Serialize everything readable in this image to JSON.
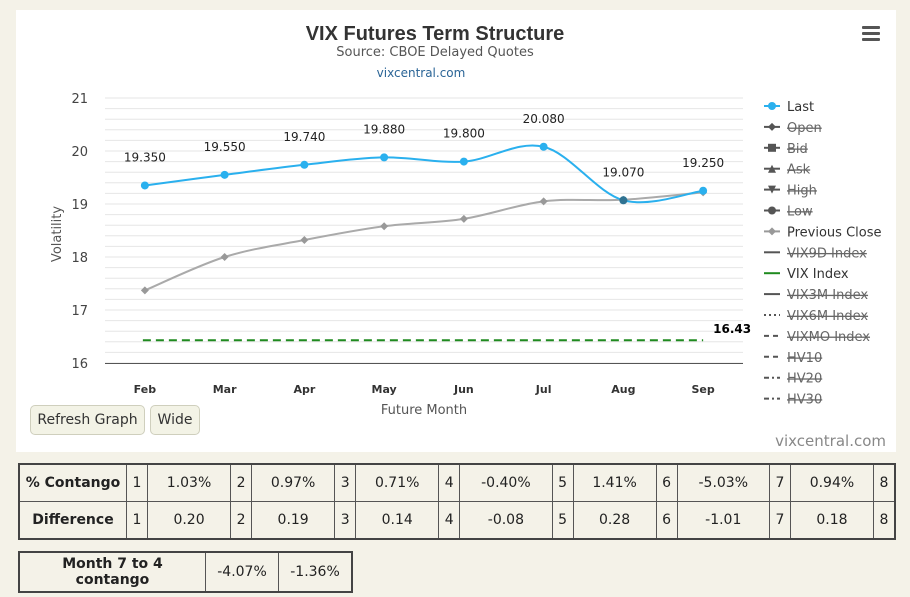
{
  "header": {
    "title": "VIX Futures Term Structure",
    "subtitle": "Source: CBOE Delayed Quotes",
    "link": "vixcentral.com"
  },
  "buttons": {
    "refresh": "Refresh Graph",
    "wide": "Wide"
  },
  "credit": "vixcentral.com",
  "chart_data": {
    "type": "line",
    "xlabel": "Future Month",
    "ylabel": "Volatility",
    "ylim": [
      16,
      21
    ],
    "yticks": [
      "21",
      "20",
      "19",
      "18",
      "17",
      "16"
    ],
    "categories": [
      "Feb",
      "Mar",
      "Apr",
      "May",
      "Jun",
      "Jul",
      "Aug",
      "Sep"
    ],
    "grid": true,
    "legend_position": "right",
    "series": [
      {
        "name": "Last",
        "color": "#2ab0ee",
        "values": [
          19.35,
          19.55,
          19.74,
          19.88,
          19.8,
          20.08,
          19.07,
          19.25
        ],
        "labels": [
          "19.350",
          "19.550",
          "19.740",
          "19.880",
          "19.800",
          "20.080",
          "19.070",
          "19.250"
        ]
      },
      {
        "name": "Previous Close",
        "color": "#aaaaaa",
        "values": [
          17.37,
          18.0,
          18.32,
          18.58,
          18.72,
          19.05,
          19.08,
          19.22
        ]
      },
      {
        "name": "VIX Index",
        "color": "#1f8a1f",
        "values": [
          16.43,
          16.43,
          16.43,
          16.43,
          16.43,
          16.43,
          16.43,
          16.43
        ],
        "end_label": "16.43"
      }
    ],
    "legend": [
      {
        "name": "Last",
        "symbol": "circle",
        "color": "#2ab0ee",
        "visible": true
      },
      {
        "name": "Open",
        "symbol": "diamond",
        "color": "#555555",
        "visible": false
      },
      {
        "name": "Bid",
        "symbol": "square",
        "color": "#555555",
        "visible": false
      },
      {
        "name": "Ask",
        "symbol": "triangle",
        "color": "#555555",
        "visible": false
      },
      {
        "name": "High",
        "symbol": "triangle-down",
        "color": "#555555",
        "visible": false
      },
      {
        "name": "Low",
        "symbol": "circle",
        "color": "#555555",
        "visible": false
      },
      {
        "name": "Previous Close",
        "symbol": "diamond",
        "color": "#999999",
        "visible": true
      },
      {
        "name": "VIX9D Index",
        "symbol": "line",
        "color": "#555555",
        "visible": false
      },
      {
        "name": "VIX Index",
        "symbol": "line",
        "color": "#1f8a1f",
        "visible": true
      },
      {
        "name": "VIX3M Index",
        "symbol": "line",
        "color": "#555555",
        "visible": false
      },
      {
        "name": "VIX6M Index",
        "symbol": "dot",
        "color": "#555555",
        "visible": false
      },
      {
        "name": "VIXMO Index",
        "symbol": "dash",
        "color": "#555555",
        "visible": false
      },
      {
        "name": "HV10",
        "symbol": "dash",
        "color": "#555555",
        "visible": false
      },
      {
        "name": "HV20",
        "symbol": "dash-dot",
        "color": "#555555",
        "visible": false
      },
      {
        "name": "HV30",
        "symbol": "dash-dot",
        "color": "#555555",
        "visible": false
      }
    ]
  },
  "contango": {
    "rows": [
      {
        "label": "% Contango",
        "cells": [
          {
            "idx": "1",
            "val": "1.03%"
          },
          {
            "idx": "2",
            "val": "0.97%"
          },
          {
            "idx": "3",
            "val": "0.71%"
          },
          {
            "idx": "4",
            "val": "-0.40%"
          },
          {
            "idx": "5",
            "val": "1.41%"
          },
          {
            "idx": "6",
            "val": "-5.03%"
          },
          {
            "idx": "7",
            "val": "0.94%"
          },
          {
            "idx": "8",
            "val": ""
          }
        ]
      },
      {
        "label": "Difference",
        "cells": [
          {
            "idx": "1",
            "val": "0.20"
          },
          {
            "idx": "2",
            "val": "0.19"
          },
          {
            "idx": "3",
            "val": "0.14"
          },
          {
            "idx": "4",
            "val": "-0.08"
          },
          {
            "idx": "5",
            "val": "0.28"
          },
          {
            "idx": "6",
            "val": "-1.01"
          },
          {
            "idx": "7",
            "val": "0.18"
          },
          {
            "idx": "8",
            "val": ""
          }
        ]
      }
    ]
  },
  "summary": {
    "label": "Month 7 to 4 contango",
    "values": [
      "-4.07%",
      "-1.36%"
    ]
  }
}
